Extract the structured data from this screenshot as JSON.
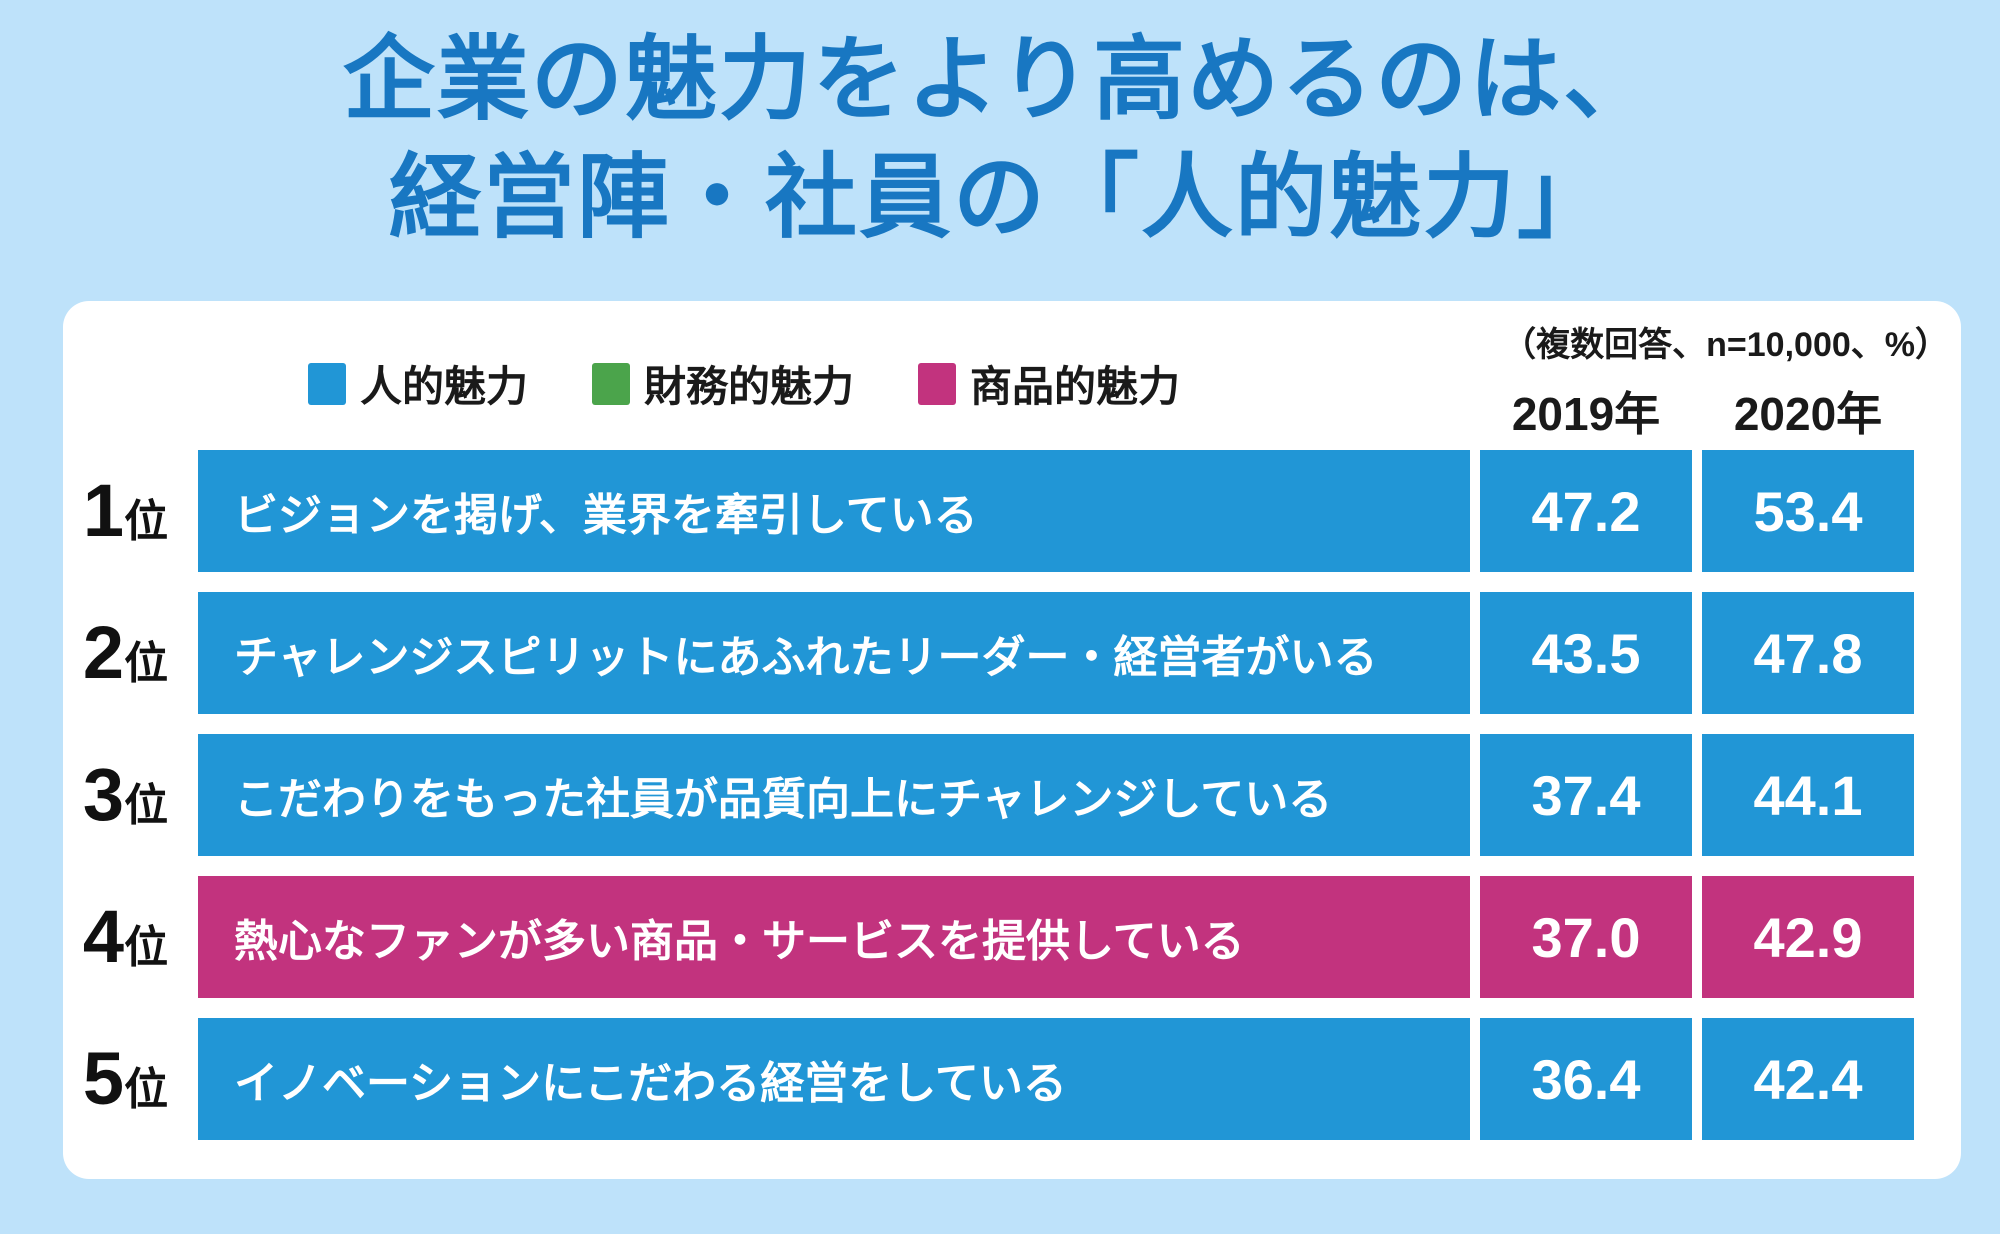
{
  "title": {
    "line1": "企業の魅力をより高めるのは、",
    "line2": "経営陣・社員の「人的魅力」"
  },
  "colors": {
    "background": "#BEE2FA",
    "card": "#FFFFFF",
    "title_text": "#1877C2",
    "bar_blue": "#2196D6",
    "bar_magenta": "#C2337E",
    "legend_green": "#4BA44B",
    "text_black": "#1A1A1A"
  },
  "legend": {
    "items": [
      {
        "label": "人的魅力",
        "color": "#2196D6"
      },
      {
        "label": "財務的魅力",
        "color": "#4BA44B"
      },
      {
        "label": "商品的魅力",
        "color": "#C2337E"
      }
    ]
  },
  "note": "（複数回答、n=10,000、%）",
  "columns": {
    "year1": "2019年",
    "year2": "2020年"
  },
  "rows": [
    {
      "rank_num": "1",
      "rank_suffix": "位",
      "label": "ビジョンを掲げ、業界を牽引している",
      "v2019": "47.2",
      "v2020": "53.4",
      "color": "#2196D6"
    },
    {
      "rank_num": "2",
      "rank_suffix": "位",
      "label": "チャレンジスピリットにあふれたリーダー・経営者がいる",
      "v2019": "43.5",
      "v2020": "47.8",
      "color": "#2196D6"
    },
    {
      "rank_num": "3",
      "rank_suffix": "位",
      "label": "こだわりをもった社員が品質向上にチャレンジしている",
      "v2019": "37.4",
      "v2020": "44.1",
      "color": "#2196D6"
    },
    {
      "rank_num": "4",
      "rank_suffix": "位",
      "label": "熱心なファンが多い商品・サービスを提供している",
      "v2019": "37.0",
      "v2020": "42.9",
      "color": "#C2337E"
    },
    {
      "rank_num": "5",
      "rank_suffix": "位",
      "label": "イノベーションにこだわる経営をしている",
      "v2019": "36.4",
      "v2020": "42.4",
      "color": "#2196D6"
    }
  ],
  "chart_data": {
    "type": "table",
    "title": "企業の魅力をより高めるのは、経営陣・社員の「人的魅力」",
    "note": "複数回答、n=10,000、%",
    "legend": [
      "人的魅力",
      "財務的魅力",
      "商品的魅力"
    ],
    "columns": [
      "2019年",
      "2020年"
    ],
    "rows": [
      {
        "rank": 1,
        "label": "ビジョンを掲げ、業界を牽引している",
        "category": "人的魅力",
        "values": [
          47.2,
          53.4
        ]
      },
      {
        "rank": 2,
        "label": "チャレンジスピリットにあふれたリーダー・経営者がいる",
        "category": "人的魅力",
        "values": [
          43.5,
          47.8
        ]
      },
      {
        "rank": 3,
        "label": "こだわりをもった社員が品質向上にチャレンジしている",
        "category": "人的魅力",
        "values": [
          37.4,
          44.1
        ]
      },
      {
        "rank": 4,
        "label": "熱心なファンが多い商品・サービスを提供している",
        "category": "商品的魅力",
        "values": [
          37.0,
          42.9
        ]
      },
      {
        "rank": 5,
        "label": "イノベーションにこだわる経営をしている",
        "category": "人的魅力",
        "values": [
          36.4,
          42.4
        ]
      }
    ]
  }
}
